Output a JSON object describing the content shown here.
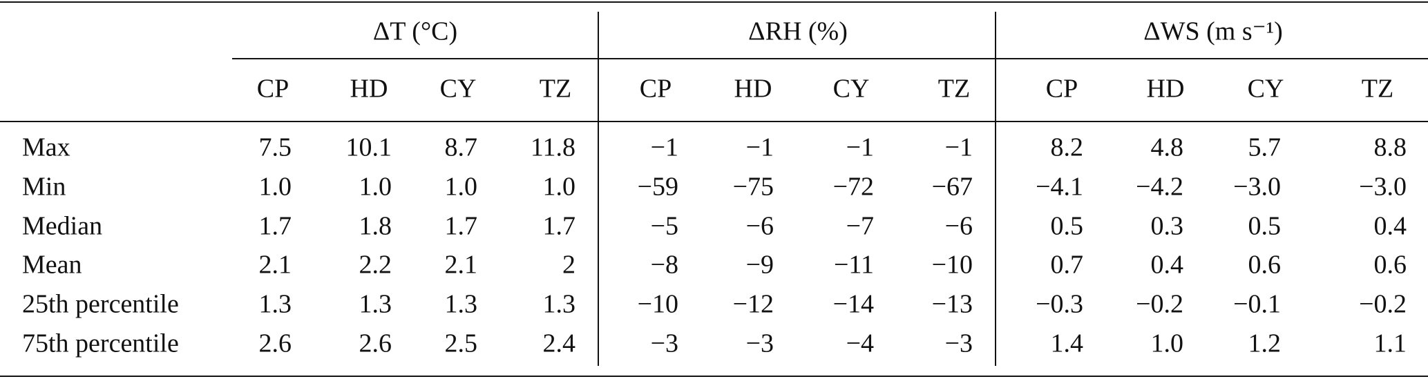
{
  "table": {
    "groups": [
      "ΔT (°C)",
      "ΔRH (%)",
      "ΔWS (m s⁻¹)"
    ],
    "columns": [
      "CP",
      "HD",
      "CY",
      "TZ",
      "CP",
      "HD",
      "CY",
      "TZ",
      "CP",
      "HD",
      "CY",
      "TZ"
    ],
    "rows": [
      [
        "Max",
        "7.5",
        "10.1",
        "8.7",
        "11.8",
        "−1",
        "−1",
        "−1",
        "−1",
        "8.2",
        "4.8",
        "5.7",
        "8.8"
      ],
      [
        "Min",
        "1.0",
        "1.0",
        "1.0",
        "1.0",
        "−59",
        "−75",
        "−72",
        "−67",
        "−4.1",
        "−4.2",
        "−3.0",
        "−3.0"
      ],
      [
        "Median",
        "1.7",
        "1.8",
        "1.7",
        "1.7",
        "−5",
        "−6",
        "−7",
        "−6",
        "0.5",
        "0.3",
        "0.5",
        "0.4"
      ],
      [
        "Mean",
        "2.1",
        "2.2",
        "2.1",
        "2",
        "−8",
        "−9",
        "−11",
        "−10",
        "0.7",
        "0.4",
        "0.6",
        "0.6"
      ],
      [
        "25th percentile",
        "1.3",
        "1.3",
        "1.3",
        "1.3",
        "−10",
        "−12",
        "−14",
        "−13",
        "−0.3",
        "−0.2",
        "−0.1",
        "−0.2"
      ],
      [
        "75th percentile",
        "2.6",
        "2.6",
        "2.5",
        "2.4",
        "−3",
        "−3",
        "−4",
        "−3",
        "1.4",
        "1.0",
        "1.2",
        "1.1"
      ]
    ]
  }
}
